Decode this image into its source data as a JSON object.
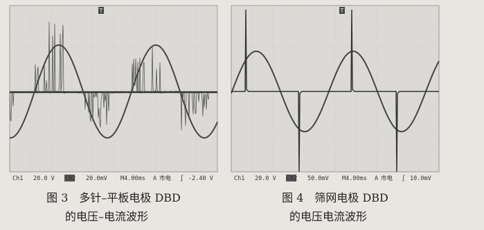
{
  "panels": [
    {
      "trigger": "T",
      "status": [
        "Ch1",
        "20.0 V",
        "Ch2",
        "20.0mV",
        "M4.00ms",
        "A",
        "市电",
        "∫",
        "-2.40 V"
      ],
      "caption": [
        "图 3　多针–平板电极 DBD",
        "的电压–电流波形"
      ]
    },
    {
      "trigger": "T",
      "status": [
        "Ch1",
        "20.0 V",
        "Ch2",
        "50.0mV",
        "M4.00ms",
        "A",
        "市电",
        "∫",
        "10.0mV"
      ],
      "caption": [
        "图 4　筛网电极 DBD",
        "的电压电流波形"
      ]
    }
  ]
}
